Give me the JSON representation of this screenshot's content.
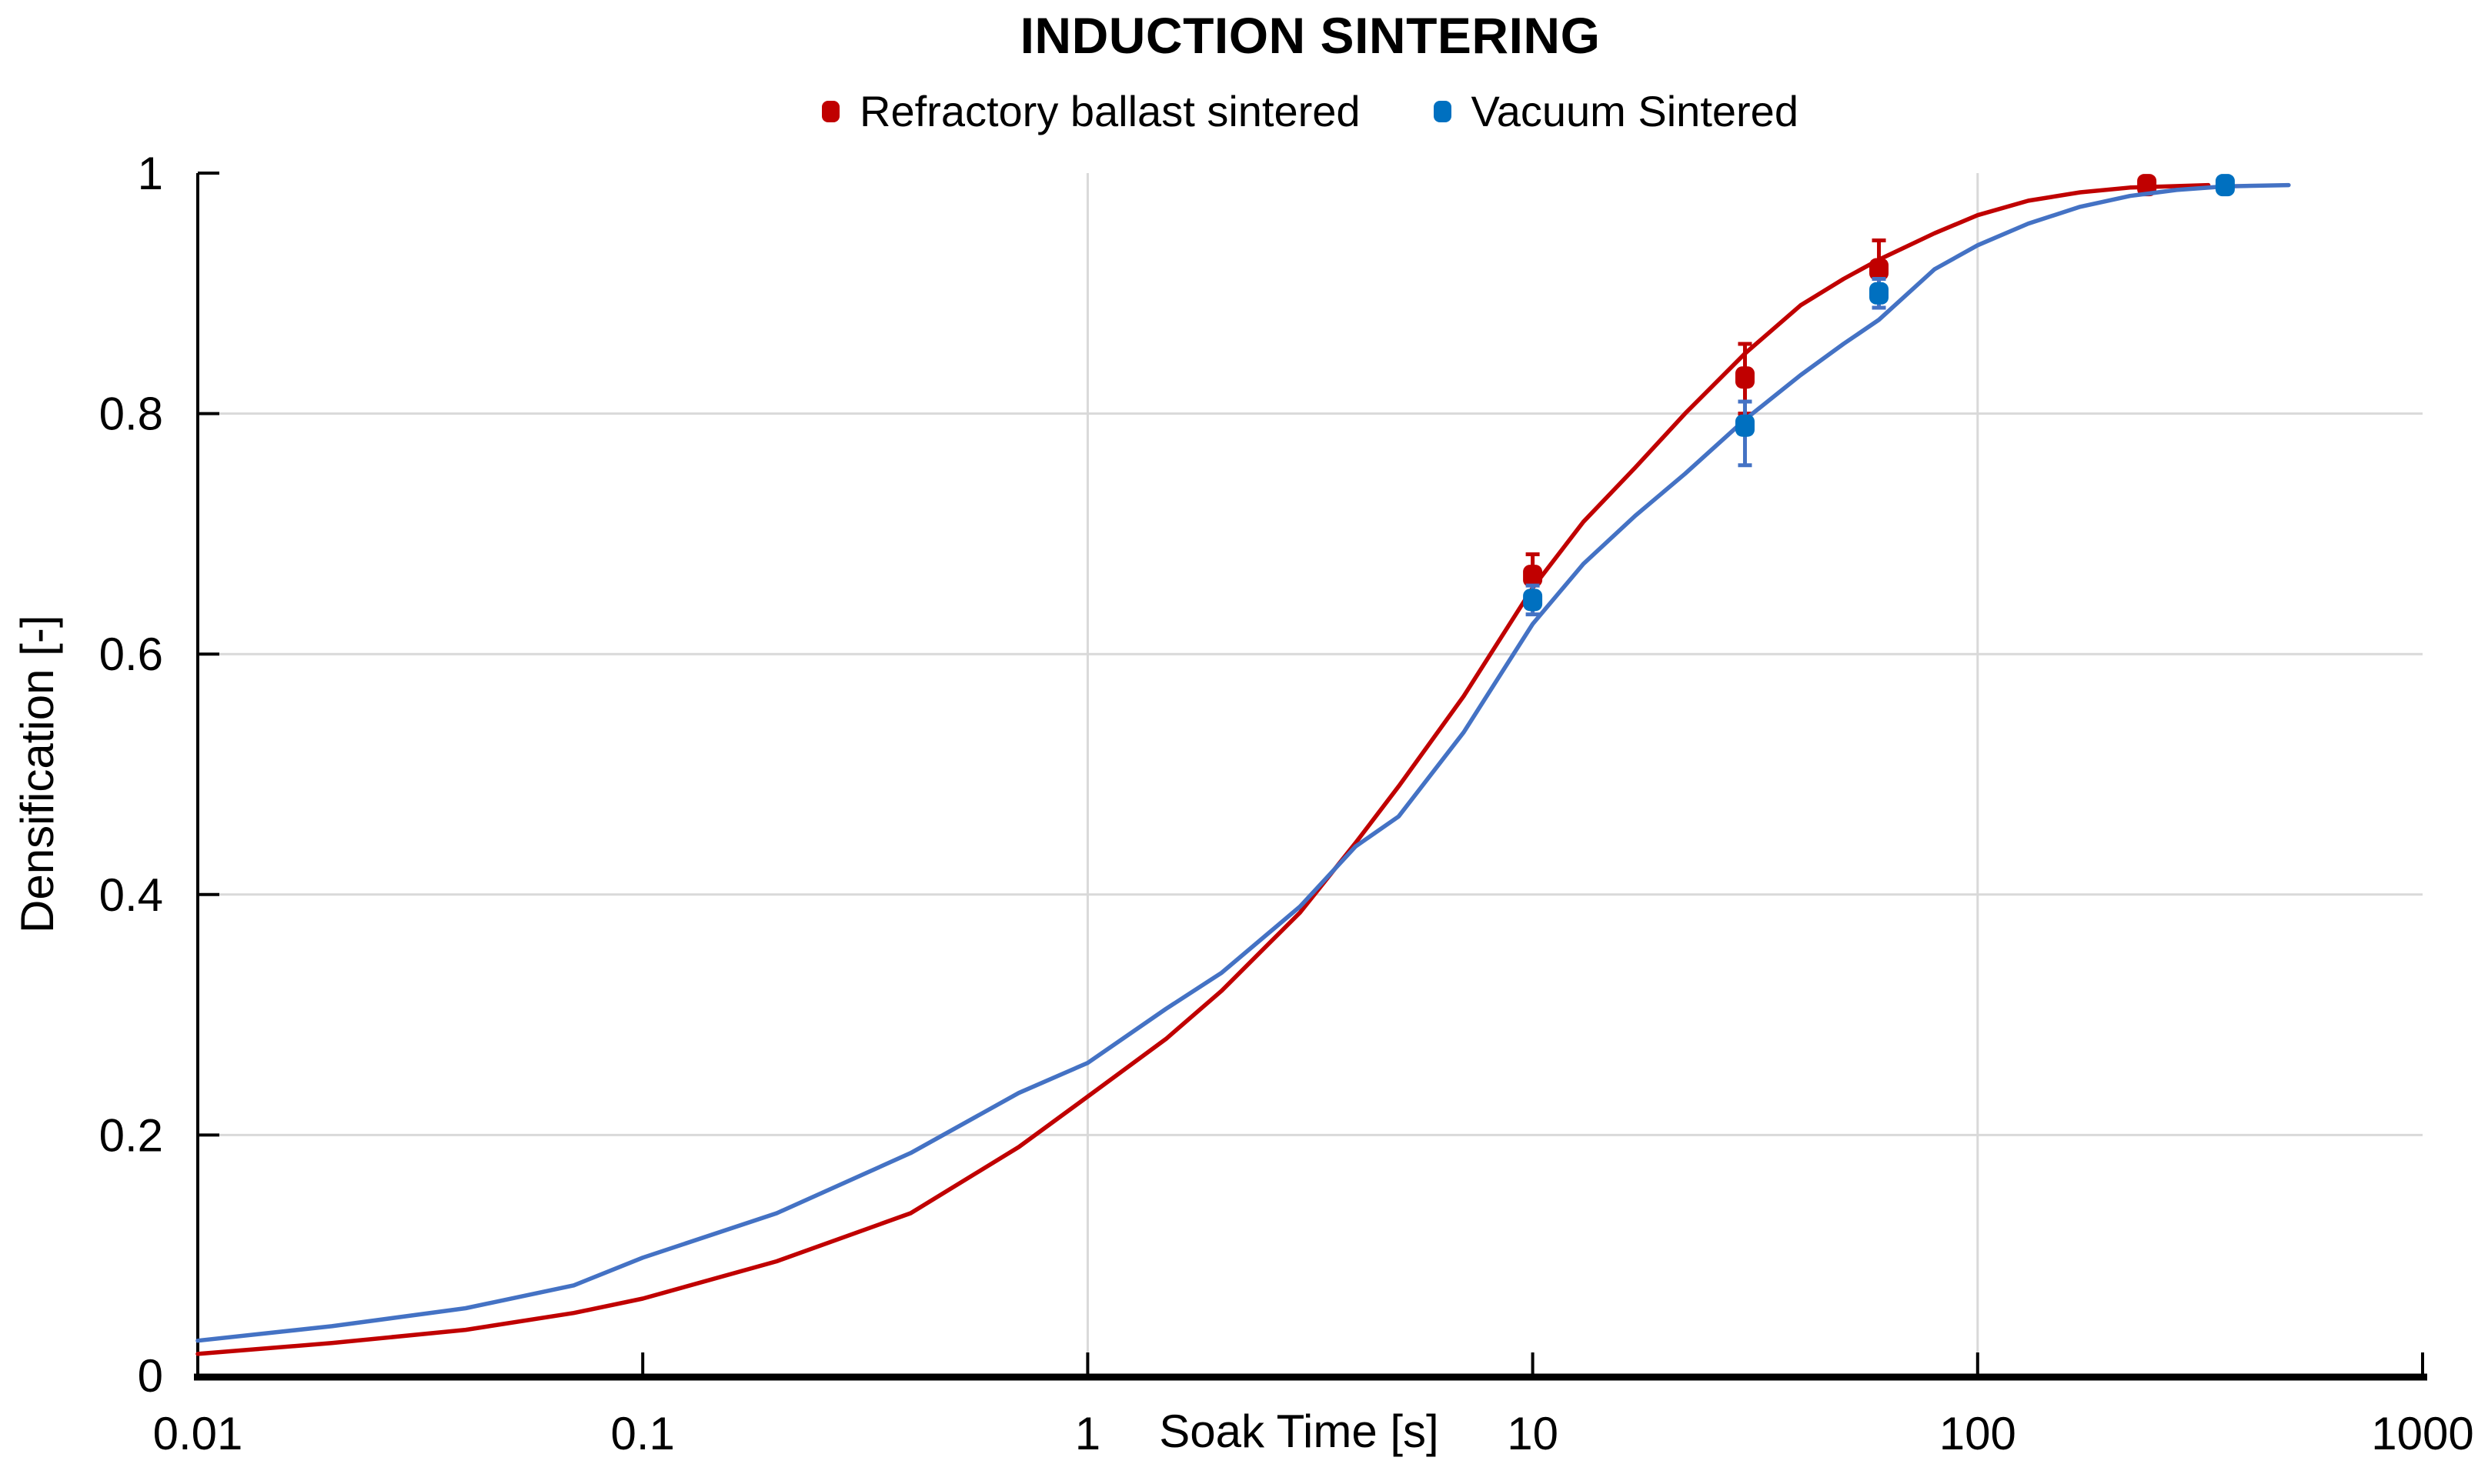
{
  "title": "INDUCTION SINTERING",
  "chart_data": {
    "type": "line",
    "title": "INDUCTION SINTERING",
    "xlabel": "Soak Time [s]",
    "ylabel": "Densification [-]",
    "x_scale": "log",
    "xlim": [
      0.01,
      1000
    ],
    "ylim": [
      0,
      1
    ],
    "x_ticks": [
      0.01,
      0.1,
      1,
      10,
      100,
      1000
    ],
    "x_tick_labels": [
      "0.01",
      "0.1",
      "1",
      "10",
      "100",
      "1000"
    ],
    "y_ticks": [
      0,
      0.2,
      0.4,
      0.6,
      0.8,
      1
    ],
    "y_tick_labels": [
      "0",
      "0.2",
      "0.4",
      "0.6",
      "0.8",
      "1"
    ],
    "h_gridlines": [
      0.2,
      0.4,
      0.6,
      0.8
    ],
    "v_gridlines": [
      1,
      100
    ],
    "grid": true,
    "legend_position": "top",
    "colors": {
      "grid": "#D9D9D9",
      "axis": "#000000",
      "red_series": "#C00000",
      "blue_marker": "#0070C0",
      "blue_line": "#4472C4"
    },
    "series": [
      {
        "name": "Refractory ballast sintered",
        "marker_color": "#C00000",
        "line_color": "#C00000",
        "error_color": "#C00000",
        "points": [
          {
            "x": 10,
            "y": 0.665,
            "err_up": 0.018,
            "err_down": 0.018
          },
          {
            "x": 30,
            "y": 0.83,
            "err_up": 0.028,
            "err_down": 0.03
          },
          {
            "x": 60,
            "y": 0.92,
            "err_up": 0.024,
            "err_down": 0.018
          },
          {
            "x": 240,
            "y": 0.99,
            "err_up": 0.004,
            "err_down": 0.004
          }
        ],
        "fit_curve": {
          "x": [
            0.01,
            0.02,
            0.04,
            0.07,
            0.1,
            0.2,
            0.4,
            0.7,
            1,
            1.5,
            2,
            3,
            4,
            5,
            7,
            10,
            13,
            17,
            22,
            30,
            40,
            50,
            60,
            80,
            100,
            130,
            170,
            220,
            330
          ],
          "y": [
            0.018,
            0.027,
            0.038,
            0.052,
            0.064,
            0.095,
            0.135,
            0.19,
            0.232,
            0.28,
            0.32,
            0.385,
            0.443,
            0.49,
            0.565,
            0.655,
            0.71,
            0.755,
            0.8,
            0.85,
            0.89,
            0.912,
            0.928,
            0.95,
            0.965,
            0.977,
            0.984,
            0.988,
            0.99
          ]
        }
      },
      {
        "name": "Vacuum Sintered",
        "marker_color": "#0070C0",
        "line_color": "#4472C4",
        "error_color": "#4472C4",
        "points": [
          {
            "x": 10,
            "y": 0.645,
            "err_up": 0.012,
            "err_down": 0.012
          },
          {
            "x": 30,
            "y": 0.79,
            "err_up": 0.02,
            "err_down": 0.033
          },
          {
            "x": 60,
            "y": 0.9,
            "err_up": 0.012,
            "err_down": 0.012
          },
          {
            "x": 360,
            "y": 0.99,
            "err_up": 0.004,
            "err_down": 0.004
          }
        ],
        "fit_curve": {
          "x": [
            0.01,
            0.02,
            0.04,
            0.07,
            0.1,
            0.2,
            0.4,
            0.7,
            1,
            1.5,
            2,
            3,
            4,
            5,
            7,
            10,
            13,
            17,
            22,
            30,
            40,
            50,
            60,
            80,
            100,
            130,
            170,
            220,
            280,
            360,
            500
          ],
          "y": [
            0.029,
            0.041,
            0.056,
            0.075,
            0.098,
            0.135,
            0.185,
            0.235,
            0.26,
            0.305,
            0.335,
            0.39,
            0.44,
            0.465,
            0.535,
            0.625,
            0.675,
            0.715,
            0.75,
            0.795,
            0.832,
            0.858,
            0.878,
            0.92,
            0.94,
            0.958,
            0.972,
            0.981,
            0.986,
            0.989,
            0.99
          ]
        }
      }
    ]
  }
}
